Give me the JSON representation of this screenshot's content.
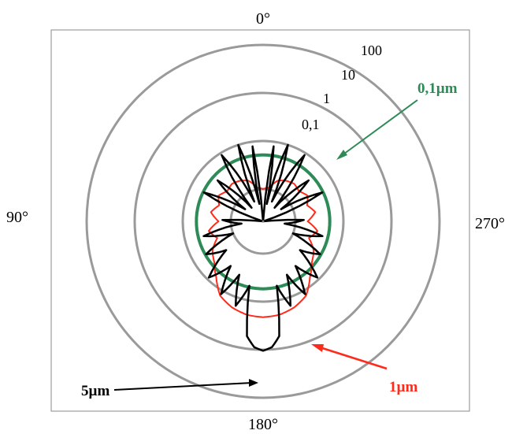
{
  "chart_data": {
    "type": "polar-line",
    "radial_scale": "log",
    "rings": [
      0.1,
      1,
      10,
      100
    ],
    "ring_labels": [
      "0,1",
      "1",
      "10",
      "100"
    ],
    "angle_labels": [
      {
        "text": "0°",
        "deg": 0
      },
      {
        "text": "90°",
        "deg": 90
      },
      {
        "text": "180°",
        "deg": 180
      },
      {
        "text": "270°",
        "deg": 270
      }
    ],
    "series": [
      {
        "name": "0,1µm",
        "color": "#2e8b57",
        "profile": [
          [
            0,
            0.51
          ],
          [
            30,
            0.52
          ],
          [
            60,
            0.52
          ],
          [
            90,
            0.52
          ],
          [
            120,
            0.52
          ],
          [
            150,
            0.53
          ],
          [
            180,
            0.54
          ],
          [
            210,
            0.53
          ],
          [
            240,
            0.52
          ],
          [
            270,
            0.52
          ],
          [
            300,
            0.52
          ],
          [
            330,
            0.52
          ],
          [
            360,
            0.51
          ]
        ]
      },
      {
        "name": "1µm",
        "color": "#ff2a1a",
        "profile": [
          [
            0,
            0.1
          ],
          [
            10,
            0.11
          ],
          [
            20,
            0.17
          ],
          [
            30,
            0.2
          ],
          [
            40,
            0.22
          ],
          [
            50,
            0.2
          ],
          [
            60,
            0.25
          ],
          [
            70,
            0.2
          ],
          [
            80,
            0.27
          ],
          [
            90,
            0.18
          ],
          [
            100,
            0.3
          ],
          [
            110,
            0.22
          ],
          [
            120,
            0.35
          ],
          [
            130,
            0.45
          ],
          [
            140,
            0.7
          ],
          [
            150,
            1.3
          ],
          [
            160,
            1.7
          ],
          [
            170,
            2.0
          ],
          [
            180,
            2.1
          ],
          [
            190,
            2.0
          ],
          [
            200,
            1.7
          ],
          [
            210,
            1.3
          ],
          [
            220,
            0.7
          ],
          [
            230,
            0.45
          ],
          [
            240,
            0.35
          ],
          [
            250,
            0.22
          ],
          [
            260,
            0.3
          ],
          [
            270,
            0.18
          ],
          [
            280,
            0.27
          ],
          [
            290,
            0.2
          ],
          [
            300,
            0.25
          ],
          [
            310,
            0.2
          ],
          [
            320,
            0.22
          ],
          [
            330,
            0.2
          ],
          [
            340,
            0.17
          ],
          [
            350,
            0.11
          ],
          [
            360,
            0.1
          ]
        ]
      },
      {
        "name": "5µm",
        "color": "#000000",
        "profile": [
          [
            0,
            0.003
          ],
          [
            4,
            0.02
          ],
          [
            8,
            0.8
          ],
          [
            12,
            0.05
          ],
          [
            18,
            1.0
          ],
          [
            24,
            0.06
          ],
          [
            32,
            0.9
          ],
          [
            40,
            0.05
          ],
          [
            48,
            0.4
          ],
          [
            56,
            0.06
          ],
          [
            64,
            0.5
          ],
          [
            72,
            0.02
          ],
          [
            80,
            0.003
          ],
          [
            88,
            0.15
          ],
          [
            96,
            0.06
          ],
          [
            104,
            0.4
          ],
          [
            112,
            0.1
          ],
          [
            120,
            0.5
          ],
          [
            128,
            0.2
          ],
          [
            136,
            0.9
          ],
          [
            144,
            0.3
          ],
          [
            150,
            1.2
          ],
          [
            156,
            0.35
          ],
          [
            162,
            1.5
          ],
          [
            168,
            0.5
          ],
          [
            172,
            5.5
          ],
          [
            176,
            9.0
          ],
          [
            180,
            10.5
          ],
          [
            184,
            9.0
          ],
          [
            188,
            5.5
          ],
          [
            192,
            0.5
          ],
          [
            198,
            1.5
          ],
          [
            204,
            0.35
          ],
          [
            210,
            1.2
          ],
          [
            216,
            0.3
          ],
          [
            224,
            0.9
          ],
          [
            232,
            0.2
          ],
          [
            240,
            0.5
          ],
          [
            248,
            0.1
          ],
          [
            256,
            0.4
          ],
          [
            264,
            0.06
          ],
          [
            272,
            0.15
          ],
          [
            280,
            0.003
          ],
          [
            288,
            0.02
          ],
          [
            296,
            0.5
          ],
          [
            304,
            0.06
          ],
          [
            312,
            0.4
          ],
          [
            320,
            0.05
          ],
          [
            328,
            0.9
          ],
          [
            336,
            0.06
          ],
          [
            342,
            1.0
          ],
          [
            348,
            0.05
          ],
          [
            352,
            0.8
          ],
          [
            356,
            0.02
          ],
          [
            360,
            0.003
          ]
        ]
      }
    ],
    "annotations": [
      {
        "text": "0,1µm",
        "series": "0,1µm"
      },
      {
        "text": "1µm",
        "series": "1µm"
      },
      {
        "text": "5µm",
        "series": "5µm"
      }
    ]
  }
}
